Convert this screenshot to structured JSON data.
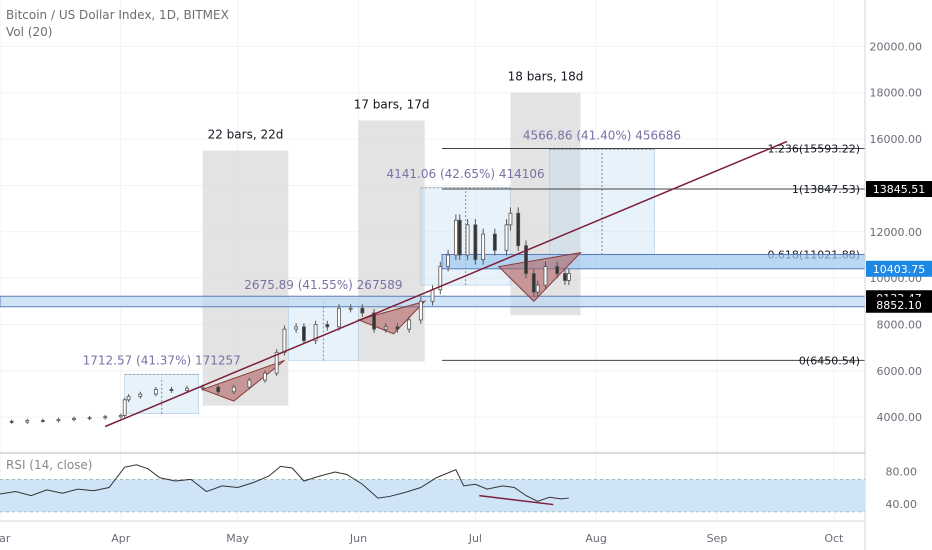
{
  "header": {
    "symbol_line": "Bitcoin / US Dollar Index, 1D, BITMEX",
    "volume_line": "Vol (20)"
  },
  "chart_data": {
    "type": "candlestick",
    "y_axis": {
      "min": 2500,
      "max": 22000,
      "ticks": [
        4000,
        6000,
        8000,
        10000,
        12000,
        14000,
        16000,
        18000,
        20000
      ],
      "tick_labels": [
        "4000.00",
        "6000.00",
        "8000.00",
        "10000.00",
        "12000.00",
        "14000.00",
        "16000.00",
        "18000.00",
        "20000.00"
      ]
    },
    "x_axis": {
      "start": "2019-03-01",
      "end": "2019-10-09",
      "labels": [
        {
          "date": "2019-03-01",
          "label": "Mar"
        },
        {
          "date": "2019-04-01",
          "label": "Apr"
        },
        {
          "date": "2019-05-01",
          "label": "May"
        },
        {
          "date": "2019-06-01",
          "label": "Jun"
        },
        {
          "date": "2019-07-01",
          "label": "Jul"
        },
        {
          "date": "2019-08-01",
          "label": "Aug"
        },
        {
          "date": "2019-09-01",
          "label": "Sep"
        },
        {
          "date": "2019-10-01",
          "label": "Oct"
        }
      ]
    },
    "price_series": [
      [
        "2019-03-01",
        3820
      ],
      [
        "2019-03-04",
        3790
      ],
      [
        "2019-03-08",
        3860
      ],
      [
        "2019-03-12",
        3850
      ],
      [
        "2019-03-16",
        3900
      ],
      [
        "2019-03-20",
        3950
      ],
      [
        "2019-03-24",
        3980
      ],
      [
        "2019-03-28",
        4020
      ],
      [
        "2019-04-01",
        4080
      ],
      [
        "2019-04-02",
        4750
      ],
      [
        "2019-04-03",
        4900
      ],
      [
        "2019-04-06",
        5000
      ],
      [
        "2019-04-10",
        5200
      ],
      [
        "2019-04-14",
        5150
      ],
      [
        "2019-04-18",
        5250
      ],
      [
        "2019-04-22",
        5300
      ],
      [
        "2019-04-26",
        5100
      ],
      [
        "2019-04-30",
        5300
      ],
      [
        "2019-05-04",
        5600
      ],
      [
        "2019-05-08",
        5900
      ],
      [
        "2019-05-11",
        6800
      ],
      [
        "2019-05-13",
        7800
      ],
      [
        "2019-05-16",
        7900
      ],
      [
        "2019-05-18",
        7300
      ],
      [
        "2019-05-21",
        8000
      ],
      [
        "2019-05-24",
        7900
      ],
      [
        "2019-05-27",
        8700
      ],
      [
        "2019-05-30",
        8700
      ],
      [
        "2019-06-02",
        8500
      ],
      [
        "2019-06-05",
        7800
      ],
      [
        "2019-06-08",
        7900
      ],
      [
        "2019-06-11",
        7800
      ],
      [
        "2019-06-14",
        8200
      ],
      [
        "2019-06-17",
        9000
      ],
      [
        "2019-06-20",
        9500
      ],
      [
        "2019-06-22",
        10500
      ],
      [
        "2019-06-24",
        11000
      ],
      [
        "2019-06-26",
        12500
      ],
      [
        "2019-06-27",
        11000
      ],
      [
        "2019-06-29",
        12300
      ],
      [
        "2019-07-01",
        10800
      ],
      [
        "2019-07-03",
        11900
      ],
      [
        "2019-07-06",
        11200
      ],
      [
        "2019-07-09",
        12300
      ],
      [
        "2019-07-10",
        12800
      ],
      [
        "2019-07-12",
        11400
      ],
      [
        "2019-07-14",
        10200
      ],
      [
        "2019-07-16",
        9400
      ],
      [
        "2019-07-17",
        9700
      ],
      [
        "2019-07-19",
        10500
      ],
      [
        "2019-07-22",
        10200
      ],
      [
        "2019-07-24",
        9900
      ],
      [
        "2019-07-25",
        10200
      ]
    ],
    "trendline": {
      "from": [
        "2019-03-28",
        3600
      ],
      "to": [
        "2019-09-19",
        15900
      ]
    },
    "horizontal_lines": [
      {
        "value": 13847.53,
        "label": "1(13847.53)"
      },
      {
        "value": 15593.22,
        "label": "1.236(15593.22)"
      },
      {
        "value": 11021.88,
        "label": "0.618(11021.88)"
      },
      {
        "value": 6450.54,
        "label": "0(6450.54)"
      }
    ],
    "support_band": {
      "from": 8852.1,
      "to": 9133.47
    },
    "resistance_band": {
      "from": 10403.75,
      "to": 11021.88
    },
    "price_tags": [
      {
        "value": 13845.51,
        "label": "13845.51",
        "bg": "#000000"
      },
      {
        "value": 10403.75,
        "label": "10403.75",
        "bg": "#1e88e5"
      },
      {
        "value": 9133.47,
        "label": "9133.47",
        "bg": "#000000"
      },
      {
        "value": 8852.1,
        "label": "8852.10",
        "bg": "#000000"
      }
    ],
    "bar_ranges": [
      {
        "from": "2019-04-22",
        "to": "2019-05-14",
        "low": 4500,
        "high": 15500,
        "label": "22 bars, 22d"
      },
      {
        "from": "2019-06-01",
        "to": "2019-06-18",
        "low": 6400,
        "high": 16800,
        "label": "17 bars, 17d"
      },
      {
        "from": "2019-07-10",
        "to": "2019-07-28",
        "low": 8400,
        "high": 18000,
        "label": "18 bars, 18d"
      }
    ],
    "measures": [
      {
        "from": "2019-04-02",
        "to": "2019-04-21",
        "low": 4150,
        "high": 5850,
        "label": "1712.57 (41.37%) 171257"
      },
      {
        "from": "2019-05-14",
        "to": "2019-06-01",
        "low": 6450,
        "high": 9100,
        "label": "2675.89 (41.55%) 267589"
      },
      {
        "from": "2019-06-17",
        "to": "2019-07-10",
        "low": 9700,
        "high": 13900,
        "label": "4141.06 (42.65%) 414106"
      },
      {
        "from": "2019-07-20",
        "to": "2019-08-16",
        "low": 11000,
        "high": 15550,
        "label": "4566.86 (41.40%) 456686"
      }
    ],
    "triangles": [
      {
        "points": [
          [
            "2019-04-22",
            5200
          ],
          [
            "2019-05-13",
            6450
          ],
          [
            "2019-04-30",
            4700
          ]
        ]
      },
      {
        "points": [
          [
            "2019-06-01",
            8200
          ],
          [
            "2019-06-18",
            9000
          ],
          [
            "2019-06-10",
            7600
          ]
        ]
      },
      {
        "points": [
          [
            "2019-07-07",
            10500
          ],
          [
            "2019-07-28",
            11100
          ],
          [
            "2019-07-16",
            9000
          ]
        ]
      }
    ],
    "rsi": {
      "label": "RSI (14, close)",
      "min": 20,
      "max": 100,
      "band_low": 30,
      "band_high": 70,
      "ticks": [
        40,
        80
      ],
      "tick_labels": [
        "40.00",
        "80.00"
      ],
      "series": [
        [
          "2019-03-01",
          52
        ],
        [
          "2019-03-05",
          55
        ],
        [
          "2019-03-09",
          50
        ],
        [
          "2019-03-13",
          57
        ],
        [
          "2019-03-17",
          53
        ],
        [
          "2019-03-21",
          58
        ],
        [
          "2019-03-25",
          56
        ],
        [
          "2019-03-29",
          60
        ],
        [
          "2019-04-02",
          85
        ],
        [
          "2019-04-05",
          88
        ],
        [
          "2019-04-08",
          83
        ],
        [
          "2019-04-11",
          72
        ],
        [
          "2019-04-15",
          68
        ],
        [
          "2019-04-19",
          70
        ],
        [
          "2019-04-23",
          55
        ],
        [
          "2019-04-27",
          62
        ],
        [
          "2019-05-01",
          60
        ],
        [
          "2019-05-05",
          66
        ],
        [
          "2019-05-09",
          74
        ],
        [
          "2019-05-12",
          86
        ],
        [
          "2019-05-15",
          84
        ],
        [
          "2019-05-18",
          68
        ],
        [
          "2019-05-22",
          74
        ],
        [
          "2019-05-26",
          79
        ],
        [
          "2019-05-29",
          76
        ],
        [
          "2019-06-02",
          64
        ],
        [
          "2019-06-06",
          47
        ],
        [
          "2019-06-09",
          49
        ],
        [
          "2019-06-13",
          54
        ],
        [
          "2019-06-17",
          60
        ],
        [
          "2019-06-21",
          72
        ],
        [
          "2019-06-23",
          76
        ],
        [
          "2019-06-26",
          82
        ],
        [
          "2019-06-28",
          62
        ],
        [
          "2019-07-01",
          64
        ],
        [
          "2019-07-04",
          58
        ],
        [
          "2019-07-08",
          62
        ],
        [
          "2019-07-11",
          60
        ],
        [
          "2019-07-14",
          50
        ],
        [
          "2019-07-17",
          43
        ],
        [
          "2019-07-20",
          48
        ],
        [
          "2019-07-23",
          46
        ],
        [
          "2019-07-25",
          47
        ]
      ],
      "divergence_line": {
        "from": [
          "2019-07-02",
          50
        ],
        "to": [
          "2019-07-21",
          39
        ]
      }
    },
    "colors": {
      "up": "#26a69a",
      "down": "#ef5350",
      "candle": "#555555",
      "trendline": "#7b1f3a",
      "measure_text": "#7e6fa6",
      "rsi_line": "#333333",
      "rsi_band": "#cfe5f7"
    }
  }
}
